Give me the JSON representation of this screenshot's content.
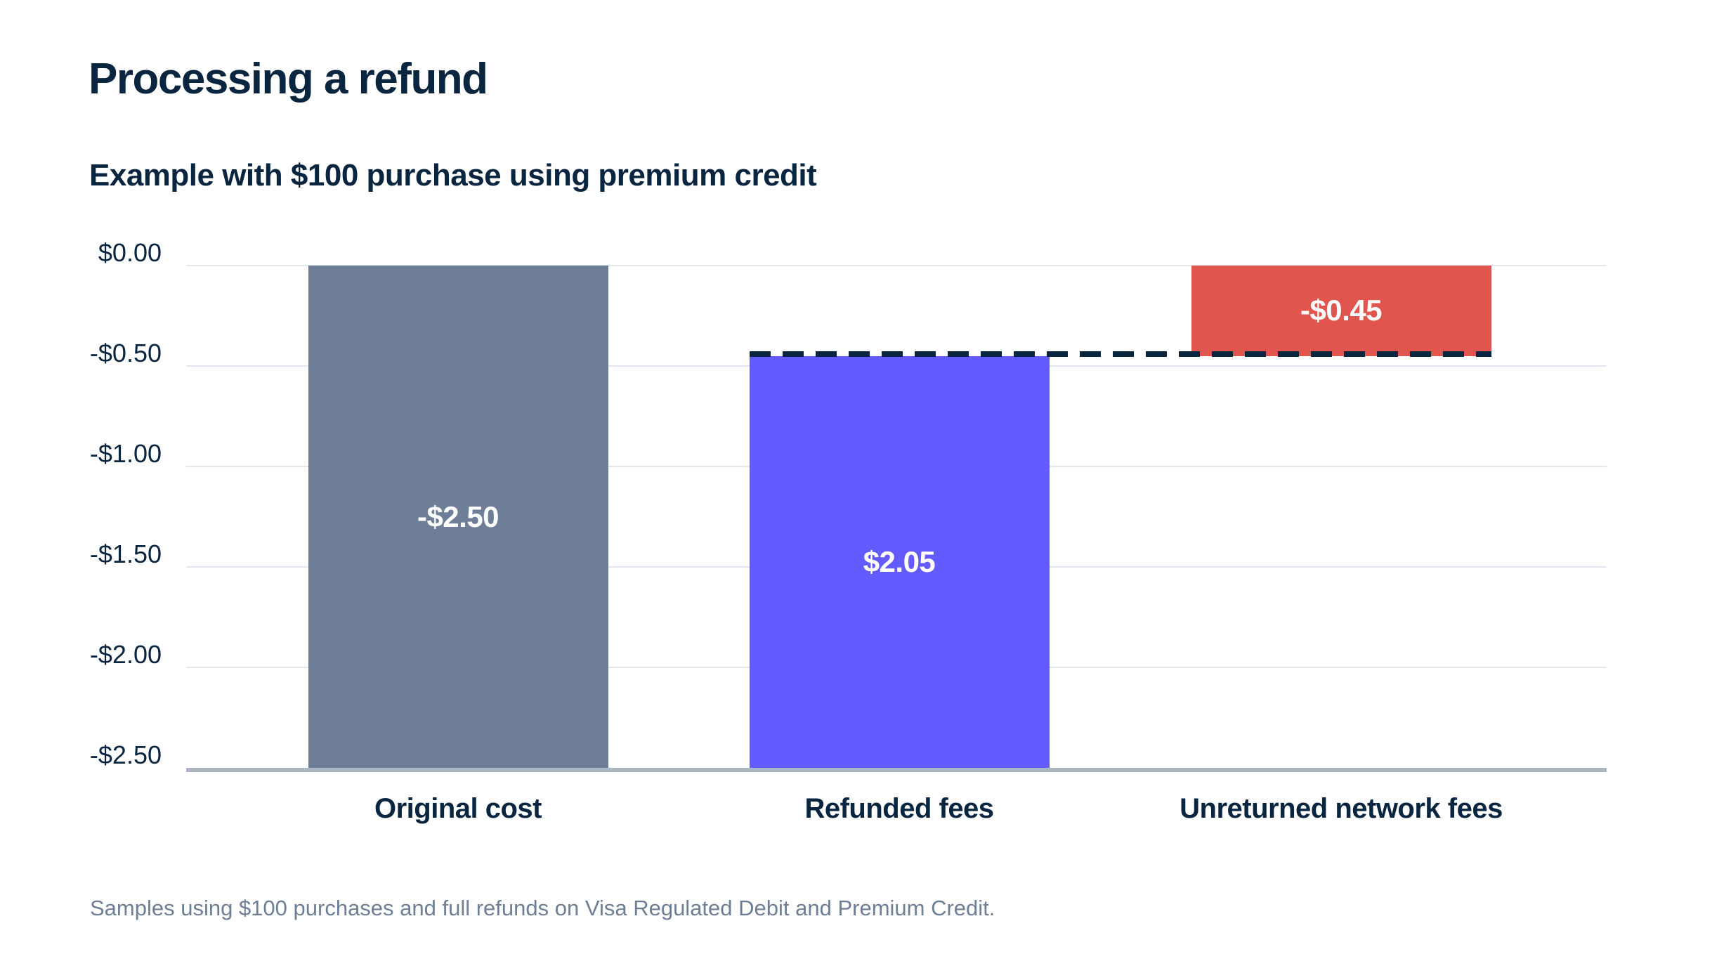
{
  "header": {
    "title": "Processing a refund",
    "subtitle": "Example with $100 purchase using premium credit"
  },
  "footnote": "Samples using $100 purchases and full refunds on Visa Regulated Debit and Premium Credit.",
  "colors": {
    "heading_text": "#0A2540",
    "axis_text": "#0A2540",
    "category_text": "#0A2540",
    "bar_value_text": "#FFFFFF",
    "footnote_text": "#6E7E95",
    "gridline": "#E2E8EF",
    "baseline": "#ABB7C5",
    "reference_line": "#0A2540",
    "background": "#FFFFFF"
  },
  "chart_data": {
    "type": "bar",
    "title": "Processing a refund",
    "subtitle": "Example with $100 purchase using premium credit",
    "orientation": "vertical",
    "unit": "USD",
    "ylim": [
      0,
      -2.5
    ],
    "grid": true,
    "legend": false,
    "y_ticks": [
      {
        "value": 0,
        "label": "$0.00"
      },
      {
        "value": -0.5,
        "label": "-$0.50"
      },
      {
        "value": -1.0,
        "label": "-$1.00"
      },
      {
        "value": -1.5,
        "label": "-$1.50"
      },
      {
        "value": -2.0,
        "label": "-$2.00"
      },
      {
        "value": -2.5,
        "label": "-$2.50"
      }
    ],
    "categories": [
      "Original cost",
      "Refunded fees",
      "Unreturned network fees"
    ],
    "bars": [
      {
        "category": "Original cost",
        "from": 0,
        "to": -2.5,
        "value": -2.5,
        "label": "-$2.50",
        "color": "#6E7E97"
      },
      {
        "category": "Refunded fees",
        "from": -0.45,
        "to": -2.5,
        "value": 2.05,
        "label": "$2.05",
        "color": "#635BFF"
      },
      {
        "category": "Unreturned network fees",
        "from": 0,
        "to": -0.45,
        "value": -0.45,
        "label": "-$0.45",
        "color": "#E0564E"
      }
    ],
    "reference_line": {
      "value": -0.45,
      "style": "dashed",
      "color": "#0A2540",
      "spans_categories": [
        "Refunded fees",
        "Unreturned network fees"
      ]
    }
  }
}
